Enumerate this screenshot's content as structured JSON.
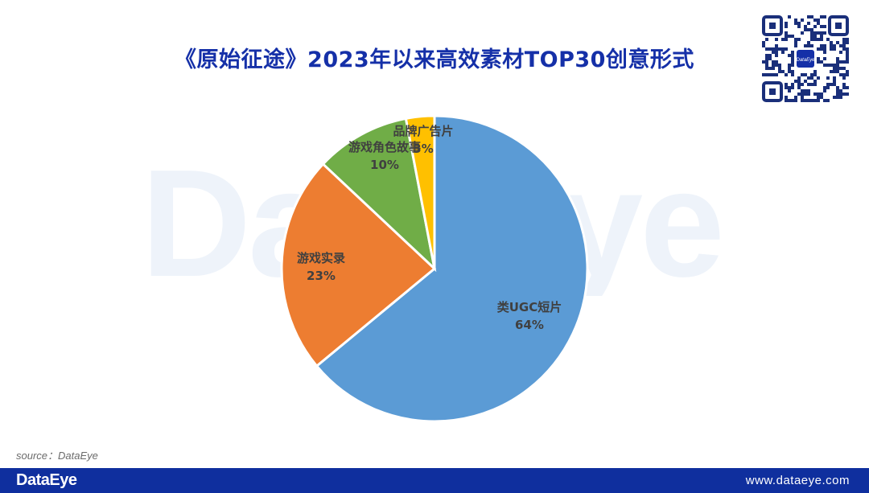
{
  "watermark": "DataEye",
  "qr_badge": "DataEye",
  "source": "source：DataEye",
  "footer": {
    "logo": "DataEye",
    "url": "www.dataeye.com"
  },
  "colors": {
    "title": "#1530a8",
    "footer": "#0f2f9e",
    "slice_ugc": "#5b9bd5",
    "slice_real": "#ed7d31",
    "slice_story": "#70ad47",
    "slice_brand": "#ffc000"
  },
  "chart_data": {
    "type": "pie",
    "title": "《原始征途》2023年以来高效素材TOP30创意形式",
    "slices": [
      {
        "label": "类UGC短片",
        "value": 64,
        "value_label": "64%",
        "color": "#5b9bd5"
      },
      {
        "label": "游戏实录",
        "value": 23,
        "value_label": "23%",
        "color": "#ed7d31"
      },
      {
        "label": "游戏角色故事",
        "value": 10,
        "value_label": "10%",
        "color": "#70ad47"
      },
      {
        "label": "品牌广告片",
        "value": 3,
        "value_label": "3%",
        "color": "#ffc000"
      }
    ],
    "start_angle": "12 o'clock",
    "direction": "clockwise",
    "legend": "none"
  }
}
